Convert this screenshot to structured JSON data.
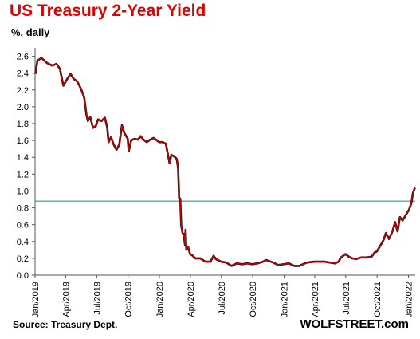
{
  "chart_data": {
    "type": "line",
    "title": "US Treasury 2-Year Yield",
    "subtitle": "%, daily",
    "source": "Source: Treasury Dept.",
    "brand": "WOLFSTREET.com",
    "colors": {
      "title": "#e00000",
      "line": "#cc0000",
      "line_outline": "#111111",
      "reference": "#2e8b57"
    },
    "grid": "off",
    "ylim": [
      0,
      2.7
    ],
    "yticks": [
      "0.0",
      "0.2",
      "0.4",
      "0.6",
      "0.8",
      "1.0",
      "1.2",
      "1.4",
      "1.6",
      "1.8",
      "2.0",
      "2.2",
      "2.4",
      "2.6"
    ],
    "xticks": [
      "Jan/2019",
      "Apr/2019",
      "Jul/2019",
      "Oct/2019",
      "Jan/2020",
      "Apr/2020",
      "Jul/2020",
      "Oct/2020",
      "Jan/2021",
      "Apr/2021",
      "Jul/2021",
      "Oct/2021",
      "Jan/2022"
    ],
    "x_tick_dates": [
      "2019-01-01",
      "2019-04-01",
      "2019-07-01",
      "2019-10-01",
      "2020-01-01",
      "2020-04-01",
      "2020-07-01",
      "2020-10-01",
      "2021-01-01",
      "2021-04-01",
      "2021-07-01",
      "2021-10-01",
      "2022-01-01"
    ],
    "xlim": [
      "2019-01-01",
      "2022-01-21"
    ],
    "reference_line": {
      "y": 0.88
    },
    "series": [
      {
        "x": [
          "2019-01-02",
          "2019-01-08",
          "2019-01-20",
          "2019-02-05",
          "2019-02-20",
          "2019-03-05",
          "2019-03-15",
          "2019-03-25",
          "2019-04-05",
          "2019-04-15",
          "2019-04-25",
          "2019-05-05",
          "2019-05-15",
          "2019-05-20",
          "2019-05-25",
          "2019-06-01",
          "2019-06-05",
          "2019-06-12",
          "2019-06-20",
          "2019-06-28",
          "2019-07-05",
          "2019-07-15",
          "2019-07-25",
          "2019-08-01",
          "2019-08-05",
          "2019-08-12",
          "2019-08-20",
          "2019-08-28",
          "2019-09-05",
          "2019-09-13",
          "2019-09-20",
          "2019-09-30",
          "2019-10-03",
          "2019-10-10",
          "2019-10-20",
          "2019-10-30",
          "2019-11-07",
          "2019-11-15",
          "2019-11-25",
          "2019-12-05",
          "2019-12-15",
          "2019-12-31",
          "2020-01-10",
          "2020-01-20",
          "2020-01-31",
          "2020-02-05",
          "2020-02-14",
          "2020-02-21",
          "2020-02-25",
          "2020-02-28",
          "2020-03-02",
          "2020-03-05",
          "2020-03-09",
          "2020-03-12",
          "2020-03-16",
          "2020-03-18",
          "2020-03-20",
          "2020-03-25",
          "2020-03-31",
          "2020-04-08",
          "2020-04-15",
          "2020-04-30",
          "2020-05-15",
          "2020-05-30",
          "2020-06-08",
          "2020-06-15",
          "2020-06-30",
          "2020-07-15",
          "2020-07-31",
          "2020-08-15",
          "2020-08-31",
          "2020-09-15",
          "2020-09-30",
          "2020-10-15",
          "2020-10-31",
          "2020-11-09",
          "2020-11-30",
          "2020-12-15",
          "2020-12-31",
          "2021-01-15",
          "2021-01-31",
          "2021-02-15",
          "2021-02-25",
          "2021-03-10",
          "2021-03-31",
          "2021-04-15",
          "2021-04-30",
          "2021-05-15",
          "2021-05-31",
          "2021-06-10",
          "2021-06-17",
          "2021-06-30",
          "2021-07-10",
          "2021-07-20",
          "2021-07-31",
          "2021-08-15",
          "2021-08-31",
          "2021-09-15",
          "2021-09-24",
          "2021-09-30",
          "2021-10-06",
          "2021-10-12",
          "2021-10-20",
          "2021-10-27",
          "2021-11-05",
          "2021-11-15",
          "2021-11-23",
          "2021-11-30",
          "2021-12-07",
          "2021-12-15",
          "2021-12-25",
          "2022-01-03",
          "2022-01-10",
          "2022-01-14",
          "2022-01-20"
        ],
        "values": [
          2.39,
          2.55,
          2.58,
          2.52,
          2.49,
          2.51,
          2.45,
          2.25,
          2.33,
          2.39,
          2.33,
          2.3,
          2.22,
          2.17,
          2.12,
          1.9,
          1.83,
          1.88,
          1.75,
          1.77,
          1.85,
          1.83,
          1.87,
          1.75,
          1.58,
          1.64,
          1.55,
          1.49,
          1.55,
          1.78,
          1.69,
          1.62,
          1.47,
          1.6,
          1.62,
          1.61,
          1.65,
          1.61,
          1.58,
          1.61,
          1.63,
          1.58,
          1.58,
          1.56,
          1.33,
          1.43,
          1.41,
          1.38,
          1.27,
          0.91,
          0.91,
          0.59,
          0.5,
          0.49,
          0.36,
          0.54,
          0.3,
          0.34,
          0.25,
          0.23,
          0.2,
          0.2,
          0.16,
          0.16,
          0.23,
          0.19,
          0.16,
          0.15,
          0.11,
          0.14,
          0.13,
          0.14,
          0.13,
          0.14,
          0.16,
          0.18,
          0.15,
          0.12,
          0.13,
          0.14,
          0.11,
          0.11,
          0.13,
          0.15,
          0.16,
          0.16,
          0.16,
          0.15,
          0.14,
          0.16,
          0.21,
          0.25,
          0.22,
          0.2,
          0.19,
          0.21,
          0.21,
          0.22,
          0.27,
          0.28,
          0.32,
          0.36,
          0.42,
          0.5,
          0.43,
          0.52,
          0.63,
          0.52,
          0.69,
          0.65,
          0.72,
          0.78,
          0.86,
          0.97,
          1.04
        ]
      }
    ]
  }
}
